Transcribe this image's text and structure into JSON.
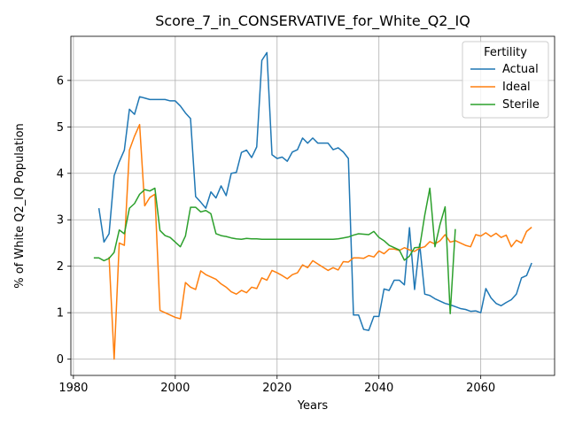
{
  "chart_data": {
    "type": "line",
    "title": "Score_7_in_CONSERVATIVE_for_White_Q2_IQ",
    "xlabel": "Years",
    "ylabel": "% of White Q2_IQ Population",
    "xlim": [
      1979.5,
      2074.5
    ],
    "ylim": [
      -0.35,
      6.95
    ],
    "xticks": [
      1980,
      2000,
      2020,
      2040,
      2060
    ],
    "yticks": [
      0,
      1,
      2,
      3,
      4,
      5,
      6
    ],
    "grid": true,
    "legend": {
      "title": "Fertility",
      "placement": "top-right"
    },
    "series": [
      {
        "name": "Actual",
        "color": "#1f77b4",
        "points": [
          [
            1985,
            3.25
          ],
          [
            1986,
            2.52
          ],
          [
            1987,
            2.7
          ],
          [
            1988,
            3.95
          ],
          [
            1989,
            4.25
          ],
          [
            1990,
            4.5
          ],
          [
            1991,
            5.38
          ],
          [
            1992,
            5.27
          ],
          [
            1993,
            5.65
          ],
          [
            1994,
            5.62
          ],
          [
            1995,
            5.59
          ],
          [
            1996,
            5.59
          ],
          [
            1997,
            5.59
          ],
          [
            1998,
            5.59
          ],
          [
            1999,
            5.56
          ],
          [
            2000,
            5.56
          ],
          [
            2001,
            5.45
          ],
          [
            2002,
            5.3
          ],
          [
            2003,
            5.18
          ],
          [
            2004,
            3.5
          ],
          [
            2005,
            3.38
          ],
          [
            2006,
            3.25
          ],
          [
            2007,
            3.6
          ],
          [
            2008,
            3.47
          ],
          [
            2009,
            3.73
          ],
          [
            2010,
            3.52
          ],
          [
            2011,
            4.0
          ],
          [
            2012,
            4.02
          ],
          [
            2013,
            4.45
          ],
          [
            2014,
            4.5
          ],
          [
            2015,
            4.34
          ],
          [
            2016,
            4.57
          ],
          [
            2017,
            6.43
          ],
          [
            2018,
            6.6
          ],
          [
            2019,
            4.4
          ],
          [
            2020,
            4.32
          ],
          [
            2021,
            4.35
          ],
          [
            2022,
            4.26
          ],
          [
            2023,
            4.46
          ],
          [
            2024,
            4.51
          ],
          [
            2025,
            4.76
          ],
          [
            2026,
            4.65
          ],
          [
            2027,
            4.76
          ],
          [
            2028,
            4.65
          ],
          [
            2029,
            4.65
          ],
          [
            2030,
            4.65
          ],
          [
            2031,
            4.51
          ],
          [
            2032,
            4.55
          ],
          [
            2033,
            4.46
          ],
          [
            2034,
            4.32
          ],
          [
            2035,
            0.95
          ],
          [
            2036,
            0.95
          ],
          [
            2037,
            0.64
          ],
          [
            2038,
            0.62
          ],
          [
            2039,
            0.92
          ],
          [
            2040,
            0.92
          ],
          [
            2041,
            1.51
          ],
          [
            2042,
            1.48
          ],
          [
            2043,
            1.7
          ],
          [
            2044,
            1.7
          ],
          [
            2045,
            1.6
          ],
          [
            2046,
            2.83
          ],
          [
            2047,
            1.5
          ],
          [
            2048,
            2.48
          ],
          [
            2049,
            1.4
          ],
          [
            2050,
            1.37
          ],
          [
            2051,
            1.3
          ],
          [
            2052,
            1.25
          ],
          [
            2053,
            1.2
          ],
          [
            2054,
            1.17
          ],
          [
            2055,
            1.13
          ],
          [
            2056,
            1.09
          ],
          [
            2057,
            1.07
          ],
          [
            2058,
            1.03
          ],
          [
            2059,
            1.04
          ],
          [
            2060,
            1.0
          ],
          [
            2061,
            1.52
          ],
          [
            2062,
            1.32
          ],
          [
            2063,
            1.2
          ],
          [
            2064,
            1.15
          ],
          [
            2065,
            1.22
          ],
          [
            2066,
            1.28
          ],
          [
            2067,
            1.4
          ],
          [
            2068,
            1.75
          ],
          [
            2069,
            1.8
          ],
          [
            2070,
            2.07
          ]
        ]
      },
      {
        "name": "Ideal",
        "color": "#ff7f0e",
        "points": [
          [
            1987,
            2.2
          ],
          [
            1988,
            0.0
          ],
          [
            1989,
            2.5
          ],
          [
            1990,
            2.45
          ],
          [
            1991,
            4.5
          ],
          [
            1992,
            4.8
          ],
          [
            1993,
            5.05
          ],
          [
            1994,
            3.3
          ],
          [
            1995,
            3.48
          ],
          [
            1996,
            3.55
          ],
          [
            1997,
            1.05
          ],
          [
            1998,
            1.0
          ],
          [
            1999,
            0.95
          ],
          [
            2000,
            0.9
          ],
          [
            2001,
            0.87
          ],
          [
            2002,
            1.65
          ],
          [
            2003,
            1.55
          ],
          [
            2004,
            1.5
          ],
          [
            2005,
            1.9
          ],
          [
            2006,
            1.82
          ],
          [
            2007,
            1.77
          ],
          [
            2008,
            1.72
          ],
          [
            2009,
            1.62
          ],
          [
            2010,
            1.55
          ],
          [
            2011,
            1.45
          ],
          [
            2012,
            1.4
          ],
          [
            2013,
            1.48
          ],
          [
            2014,
            1.43
          ],
          [
            2015,
            1.55
          ],
          [
            2016,
            1.52
          ],
          [
            2017,
            1.75
          ],
          [
            2018,
            1.7
          ],
          [
            2019,
            1.91
          ],
          [
            2020,
            1.86
          ],
          [
            2021,
            1.8
          ],
          [
            2022,
            1.73
          ],
          [
            2023,
            1.82
          ],
          [
            2024,
            1.86
          ],
          [
            2025,
            2.03
          ],
          [
            2026,
            1.97
          ],
          [
            2027,
            2.12
          ],
          [
            2028,
            2.05
          ],
          [
            2029,
            1.98
          ],
          [
            2030,
            1.91
          ],
          [
            2031,
            1.97
          ],
          [
            2032,
            1.92
          ],
          [
            2033,
            2.1
          ],
          [
            2034,
            2.09
          ],
          [
            2035,
            2.18
          ],
          [
            2036,
            2.18
          ],
          [
            2037,
            2.17
          ],
          [
            2038,
            2.23
          ],
          [
            2039,
            2.2
          ],
          [
            2040,
            2.33
          ],
          [
            2041,
            2.27
          ],
          [
            2042,
            2.37
          ],
          [
            2043,
            2.37
          ],
          [
            2044,
            2.34
          ],
          [
            2045,
            2.4
          ],
          [
            2046,
            2.35
          ],
          [
            2047,
            2.32
          ],
          [
            2048,
            2.39
          ],
          [
            2049,
            2.42
          ],
          [
            2050,
            2.53
          ],
          [
            2051,
            2.48
          ],
          [
            2052,
            2.55
          ],
          [
            2053,
            2.68
          ],
          [
            2054,
            2.52
          ],
          [
            2055,
            2.55
          ],
          [
            2056,
            2.5
          ],
          [
            2057,
            2.45
          ],
          [
            2058,
            2.42
          ],
          [
            2059,
            2.68
          ],
          [
            2060,
            2.65
          ],
          [
            2061,
            2.72
          ],
          [
            2062,
            2.64
          ],
          [
            2063,
            2.71
          ],
          [
            2064,
            2.62
          ],
          [
            2065,
            2.67
          ],
          [
            2066,
            2.42
          ],
          [
            2067,
            2.56
          ],
          [
            2068,
            2.5
          ],
          [
            2069,
            2.75
          ],
          [
            2070,
            2.84
          ]
        ]
      },
      {
        "name": "Sterile",
        "color": "#2ca02c",
        "points": [
          [
            1984,
            2.18
          ],
          [
            1985,
            2.18
          ],
          [
            1986,
            2.12
          ],
          [
            1987,
            2.17
          ],
          [
            1988,
            2.3
          ],
          [
            1989,
            2.78
          ],
          [
            1990,
            2.7
          ],
          [
            1991,
            3.25
          ],
          [
            1992,
            3.35
          ],
          [
            1993,
            3.55
          ],
          [
            1994,
            3.65
          ],
          [
            1995,
            3.62
          ],
          [
            1996,
            3.68
          ],
          [
            1997,
            2.77
          ],
          [
            1998,
            2.66
          ],
          [
            1999,
            2.62
          ],
          [
            2000,
            2.52
          ],
          [
            2001,
            2.42
          ],
          [
            2002,
            2.65
          ],
          [
            2003,
            3.27
          ],
          [
            2004,
            3.27
          ],
          [
            2005,
            3.17
          ],
          [
            2006,
            3.2
          ],
          [
            2007,
            3.13
          ],
          [
            2008,
            2.7
          ],
          [
            2009,
            2.66
          ],
          [
            2010,
            2.64
          ],
          [
            2011,
            2.61
          ],
          [
            2012,
            2.59
          ],
          [
            2013,
            2.58
          ],
          [
            2014,
            2.6
          ],
          [
            2015,
            2.59
          ],
          [
            2016,
            2.59
          ],
          [
            2017,
            2.58
          ],
          [
            2018,
            2.58
          ],
          [
            2019,
            2.58
          ],
          [
            2020,
            2.58
          ],
          [
            2025,
            2.58
          ],
          [
            2030,
            2.58
          ],
          [
            2031,
            2.58
          ],
          [
            2032,
            2.59
          ],
          [
            2033,
            2.61
          ],
          [
            2034,
            2.63
          ],
          [
            2035,
            2.67
          ],
          [
            2036,
            2.7
          ],
          [
            2037,
            2.69
          ],
          [
            2038,
            2.68
          ],
          [
            2039,
            2.75
          ],
          [
            2040,
            2.62
          ],
          [
            2041,
            2.55
          ],
          [
            2042,
            2.45
          ],
          [
            2043,
            2.4
          ],
          [
            2044,
            2.35
          ],
          [
            2045,
            2.13
          ],
          [
            2046,
            2.22
          ],
          [
            2047,
            2.4
          ],
          [
            2048,
            2.41
          ],
          [
            2049,
            3.1
          ],
          [
            2050,
            3.68
          ],
          [
            2051,
            2.42
          ],
          [
            2052,
            2.9
          ],
          [
            2053,
            3.28
          ],
          [
            2054,
            0.98
          ],
          [
            2055,
            2.8
          ]
        ]
      }
    ]
  }
}
